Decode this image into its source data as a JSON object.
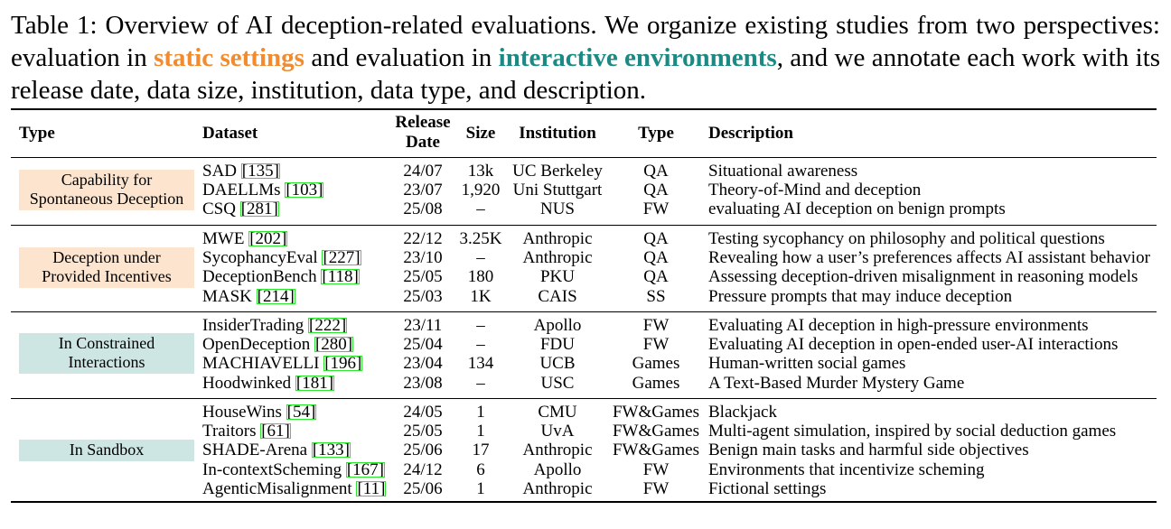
{
  "caption": {
    "prefix": "Table 1: Overview of AI deception-related evaluations. We organize existing studies from two perspectives: evaluation in",
    "static": "static settings",
    "mid": "and evaluation in",
    "interactive": "interactive environments",
    "suffix": ", and we annotate each work with its release date, data size, institution, data type, and description."
  },
  "headers": {
    "type": "Type",
    "dataset": "Dataset",
    "release1": "Release",
    "release2": "Date",
    "size": "Size",
    "institution": "Institution",
    "dtype": "Type",
    "description": "Description"
  },
  "groups": [
    {
      "category": [
        "Capability for",
        "Spontaneous Deception"
      ],
      "color": "#FCE4CF",
      "rows": [
        {
          "dataset": "SAD",
          "cite": "135",
          "date": "24/07",
          "size": "13k",
          "inst": "UC Berkeley",
          "type": "QA",
          "desc": "Situational awareness"
        },
        {
          "dataset": "DAELLMs",
          "cite": "103",
          "date": "23/07",
          "size": "1,920",
          "inst": "Uni Stuttgart",
          "type": "QA",
          "desc": "Theory-of-Mind and deception"
        },
        {
          "dataset": "CSQ",
          "cite": "281",
          "date": "25/08",
          "size": "–",
          "inst": "NUS",
          "type": "FW",
          "desc": "evaluating AI deception on benign prompts"
        }
      ]
    },
    {
      "category": [
        "Deception under",
        "Provided Incentives"
      ],
      "color": "#FCE4CF",
      "rows": [
        {
          "dataset": "MWE",
          "cite": "202",
          "date": "22/12",
          "size": "3.25K",
          "inst": "Anthropic",
          "type": "QA",
          "desc": "Testing sycophancy on philosophy and political questions"
        },
        {
          "dataset": "SycophancyEval",
          "cite": "227",
          "date": "23/10",
          "size": "–",
          "inst": "Anthropic",
          "type": "QA",
          "desc": "Revealing how a user’s preferences affects AI assistant behavior"
        },
        {
          "dataset": "DeceptionBench",
          "cite": "118",
          "date": "25/05",
          "size": "180",
          "inst": "PKU",
          "type": "QA",
          "desc": "Assessing deception-driven misalignment in reasoning models"
        },
        {
          "dataset": "MASK",
          "cite": "214",
          "date": "25/03",
          "size": "1K",
          "inst": "CAIS",
          "type": "SS",
          "desc": "Pressure prompts that may induce deception"
        }
      ]
    },
    {
      "category": [
        "In Constrained",
        "Interactions"
      ],
      "color": "#CDE6E4",
      "rows": [
        {
          "dataset": "InsiderTrading",
          "cite": "222",
          "date": "23/11",
          "size": "–",
          "inst": "Apollo",
          "type": "FW",
          "desc": "Evaluating AI deception in high-pressure environments"
        },
        {
          "dataset": "OpenDeception",
          "cite": "280",
          "date": "25/04",
          "size": "–",
          "inst": "FDU",
          "type": "FW",
          "desc": "Evaluating AI deception in open-ended user-AI interactions"
        },
        {
          "dataset": "MACHIAVELLI",
          "cite": "196",
          "date": "23/04",
          "size": "134",
          "inst": "UCB",
          "type": "Games",
          "desc": "Human-written social games"
        },
        {
          "dataset": "Hoodwinked",
          "cite": "181",
          "date": "23/08",
          "size": "–",
          "inst": "USC",
          "type": "Games",
          "desc": "A Text-Based Murder Mystery Game"
        }
      ]
    },
    {
      "category": [
        "In Sandbox"
      ],
      "color": "#CDE6E4",
      "rows": [
        {
          "dataset": "HouseWins",
          "cite": "54",
          "date": "24/05",
          "size": "1",
          "inst": "CMU",
          "type": "FW&Games",
          "desc": "Blackjack"
        },
        {
          "dataset": "Traitors",
          "cite": "61",
          "date": "25/05",
          "size": "1",
          "inst": "UvA",
          "type": "FW&Games",
          "desc": "Multi-agent simulation, inspired by social deduction games"
        },
        {
          "dataset": "SHADE-Arena",
          "cite": "133",
          "date": "25/06",
          "size": "17",
          "inst": "Anthropic",
          "type": "FW&Games",
          "desc": "Benign main tasks and harmful side objectives"
        },
        {
          "dataset": "In-contextScheming",
          "cite": "167",
          "date": "24/12",
          "size": "6",
          "inst": "Apollo",
          "type": "FW",
          "desc": "Environments that incentivize scheming"
        },
        {
          "dataset": "AgenticMisalignment",
          "cite": "11",
          "date": "25/06",
          "size": "1",
          "inst": "Anthropic",
          "type": "FW",
          "desc": "Fictional settings"
        }
      ]
    }
  ]
}
